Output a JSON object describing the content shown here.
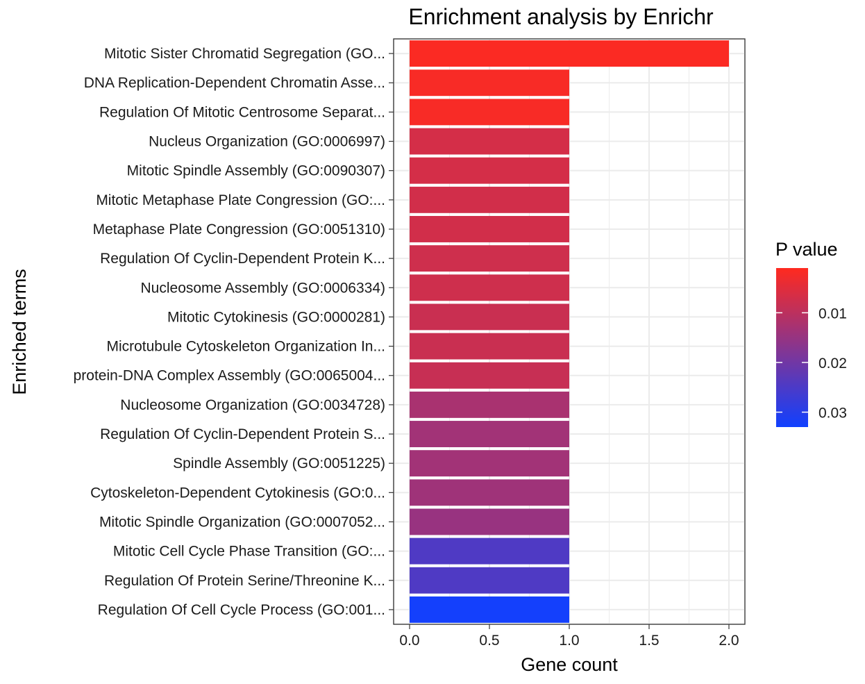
{
  "chart_data": {
    "type": "bar",
    "orientation": "horizontal",
    "title": "Enrichment analysis by Enrichr",
    "xlabel": "Gene count",
    "ylabel": "Enriched terms",
    "xlim": [
      -0.1,
      2.1
    ],
    "xticks": [
      0.0,
      0.5,
      1.0,
      1.5,
      2.0
    ],
    "xtick_labels": [
      "0.0",
      "0.5",
      "1.0",
      "1.5",
      "2.0"
    ],
    "grid": true,
    "categories": [
      "Mitotic Sister Chromatid Segregation (GO...",
      "DNA Replication-Dependent Chromatin Asse...",
      "Regulation Of Mitotic Centrosome Separat...",
      "Nucleus Organization (GO:0006997)",
      "Mitotic Spindle Assembly (GO:0090307)",
      "Mitotic Metaphase Plate Congression (GO:...",
      "Metaphase Plate Congression (GO:0051310)",
      "Regulation Of Cyclin-Dependent Protein K...",
      "Nucleosome Assembly (GO:0006334)",
      "Mitotic Cytokinesis (GO:0000281)",
      "Microtubule Cytoskeleton Organization In...",
      "protein-DNA Complex Assembly (GO:0065004...",
      "Nucleosome Organization (GO:0034728)",
      "Regulation Of Cyclin-Dependent Protein S...",
      "Spindle Assembly (GO:0051225)",
      "Cytoskeleton-Dependent Cytokinesis (GO:0...",
      "Mitotic Spindle Organization (GO:0007052...",
      "Mitotic Cell Cycle Phase Transition (GO:...",
      "Regulation Of Protein Serine/Threonine K...",
      "Regulation Of Cell Cycle Process (GO:001..."
    ],
    "values": [
      2,
      1,
      1,
      1,
      1,
      1,
      1,
      1,
      1,
      1,
      1,
      1,
      1,
      1,
      1,
      1,
      1,
      1,
      1,
      1
    ],
    "p_values": [
      0.0015,
      0.002,
      0.002,
      0.0068,
      0.0068,
      0.0072,
      0.0072,
      0.0076,
      0.0076,
      0.0082,
      0.0082,
      0.0085,
      0.0125,
      0.0135,
      0.0135,
      0.0138,
      0.0148,
      0.0245,
      0.0245,
      0.0325
    ],
    "legend": {
      "title": "P value",
      "placement": "right",
      "ticks": [
        0.01,
        0.02,
        0.03
      ],
      "tick_labels": [
        "0.01",
        "0.02",
        "0.03"
      ],
      "range": [
        0.001,
        0.033
      ],
      "low_color": "#ff2a1f",
      "high_color": "#1040ff"
    }
  }
}
